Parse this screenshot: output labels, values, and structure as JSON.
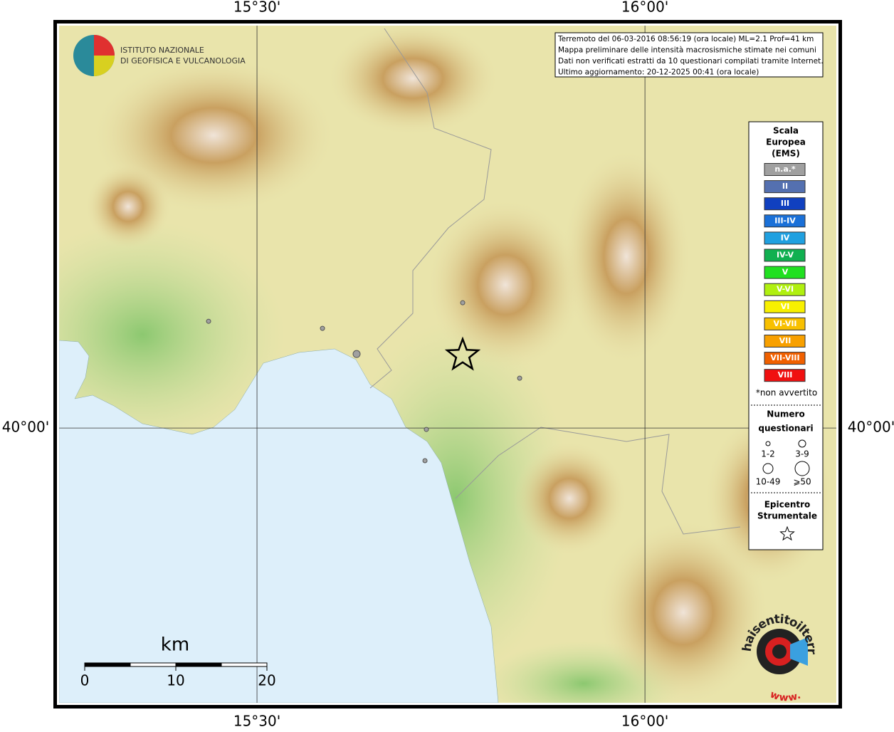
{
  "map": {
    "lon_range": [
      15.2376,
      16.254
    ],
    "lat_range": [
      39.723,
      40.403
    ],
    "lon_ticks": [
      {
        "value": 15.5,
        "label": "15°30'"
      },
      {
        "value": 16,
        "label": "16°00'"
      }
    ],
    "lat_ticks": [
      {
        "value": 40,
        "label": "40°00'"
      }
    ]
  },
  "logo": {
    "line1": "ISTITUTO NAZIONALE",
    "line2": "DI GEOFISICA E VULCANOLOGIA"
  },
  "info": [
    "Terremoto del 06-03-2016 08:56:19 (ora locale) ML=2.1 Prof=41 km",
    "Mappa preliminare delle intensità macrosismiche stimate nei comuni",
    "Dati non verificati estratti da 10 questionari compilati tramite Internet.",
    "Ultimo aggiornamento: 20-12-2025 00:41 (ora locale)"
  ],
  "legend": {
    "title": [
      "Scala",
      "Europea",
      "(EMS)"
    ],
    "items": [
      {
        "label": "n.a.*",
        "color": "#a0a0a0"
      },
      {
        "label": "II",
        "color": "#5470b0"
      },
      {
        "label": "III",
        "color": "#1040c0"
      },
      {
        "label": "III-IV",
        "color": "#1a70d8"
      },
      {
        "label": "IV",
        "color": "#20a0e0"
      },
      {
        "label": "IV-V",
        "color": "#10b050"
      },
      {
        "label": "V",
        "color": "#20e020"
      },
      {
        "label": "V-VI",
        "color": "#b0f010"
      },
      {
        "label": "VI",
        "color": "#f8f000"
      },
      {
        "label": "VI-VII",
        "color": "#f8c000"
      },
      {
        "label": "VII",
        "color": "#f8a000"
      },
      {
        "label": "VII-VIII",
        "color": "#f06000"
      },
      {
        "label": "VIII",
        "color": "#f01010"
      }
    ],
    "note": "*non avvertito",
    "count_title": [
      "Numero",
      "questionari"
    ],
    "count_classes": [
      "1-2",
      "3-9",
      "10-49",
      "⩾50"
    ],
    "epicenter_title": [
      "Epicentro",
      "Strumentale"
    ]
  },
  "points": [
    {
      "lon": 15.4376,
      "lat": 40.1054,
      "questionari": "1-2"
    },
    {
      "lon": 15.5844,
      "lat": 40.0984,
      "questionari": "1-2"
    },
    {
      "lon": 15.6284,
      "lat": 40.0731,
      "questionari": "3-9"
    },
    {
      "lon": 15.7651,
      "lat": 40.1237,
      "questionari": "1-2"
    },
    {
      "lon": 15.8385,
      "lat": 40.0492,
      "questionari": "1-2"
    },
    {
      "lon": 15.7183,
      "lat": 39.9986,
      "questionari": "1-2"
    },
    {
      "lon": 15.7165,
      "lat": 39.9677,
      "questionari": "1-2"
    }
  ],
  "epicenter": {
    "lon": 15.7651,
    "lat": 40.0717
  },
  "scalebar": {
    "unit": "km",
    "ticks": [
      0,
      10,
      20
    ]
  },
  "badge": {
    "text": "haisentitoilterremoto.it",
    "www": "www."
  }
}
